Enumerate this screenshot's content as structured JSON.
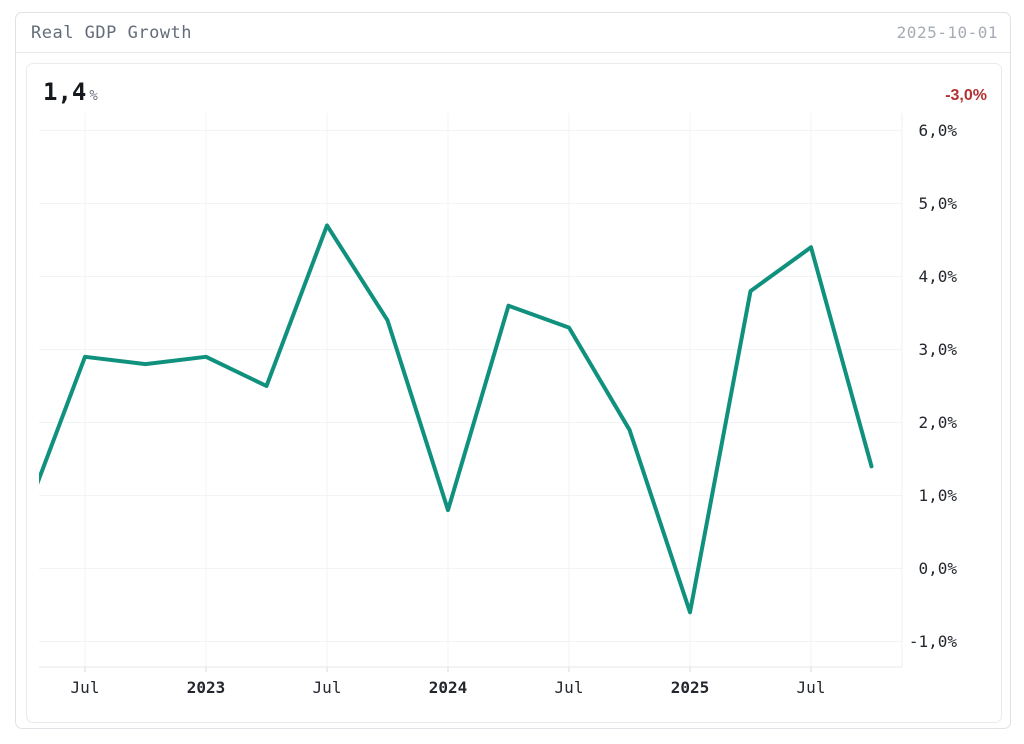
{
  "header": {
    "title": "Real GDP Growth",
    "date": "2025-10-01"
  },
  "kpi": {
    "value": "1,4",
    "unit": "%",
    "delta": "-3,0%"
  },
  "colors": {
    "line": "#10917e",
    "negative": "#b23232",
    "grid": "#f2f3f5",
    "axis": "#e4e7ea",
    "tick_mark": "#d8dbe0",
    "tick_text": "#23272e",
    "title_text": "#646c79",
    "date_text": "#a6abb5"
  },
  "chart_data": {
    "type": "line",
    "title": "Real GDP Growth",
    "unit": "%",
    "x": [
      "2022-04",
      "2022-07",
      "2022-10",
      "2023-01",
      "2023-04",
      "2023-07",
      "2023-10",
      "2024-01",
      "2024-04",
      "2024-07",
      "2024-10",
      "2025-01",
      "2025-04",
      "2025-07",
      "2025-10"
    ],
    "series": [
      {
        "name": "Real GDP Growth",
        "values": [
          0.7,
          2.9,
          2.8,
          2.9,
          2.5,
          4.7,
          3.4,
          0.8,
          3.6,
          3.3,
          1.9,
          -0.6,
          3.8,
          4.4,
          1.4
        ]
      }
    ],
    "x_tick_labels": [
      {
        "index": 1,
        "label": "Jul",
        "bold": false
      },
      {
        "index": 3,
        "label": "2023",
        "bold": true
      },
      {
        "index": 5,
        "label": "Jul",
        "bold": false
      },
      {
        "index": 7,
        "label": "2024",
        "bold": true
      },
      {
        "index": 9,
        "label": "Jul",
        "bold": false
      },
      {
        "index": 11,
        "label": "2025",
        "bold": true
      },
      {
        "index": 13,
        "label": "Jul",
        "bold": false
      }
    ],
    "y_tick_labels": [
      {
        "value": 6,
        "label": "6,0%"
      },
      {
        "value": 5,
        "label": "5,0%"
      },
      {
        "value": 4,
        "label": "4,0%"
      },
      {
        "value": 3,
        "label": "3,0%"
      },
      {
        "value": 2,
        "label": "2,0%"
      },
      {
        "value": 1,
        "label": "1,0%"
      },
      {
        "value": 0,
        "label": "0,0%"
      },
      {
        "value": -1,
        "label": "-1,0%"
      }
    ],
    "ylim": [
      -1.4,
      6.2
    ],
    "grid": true,
    "legend": false,
    "y_axis_side": "right",
    "latest": {
      "value": 1.4,
      "delta": -3.0
    }
  }
}
